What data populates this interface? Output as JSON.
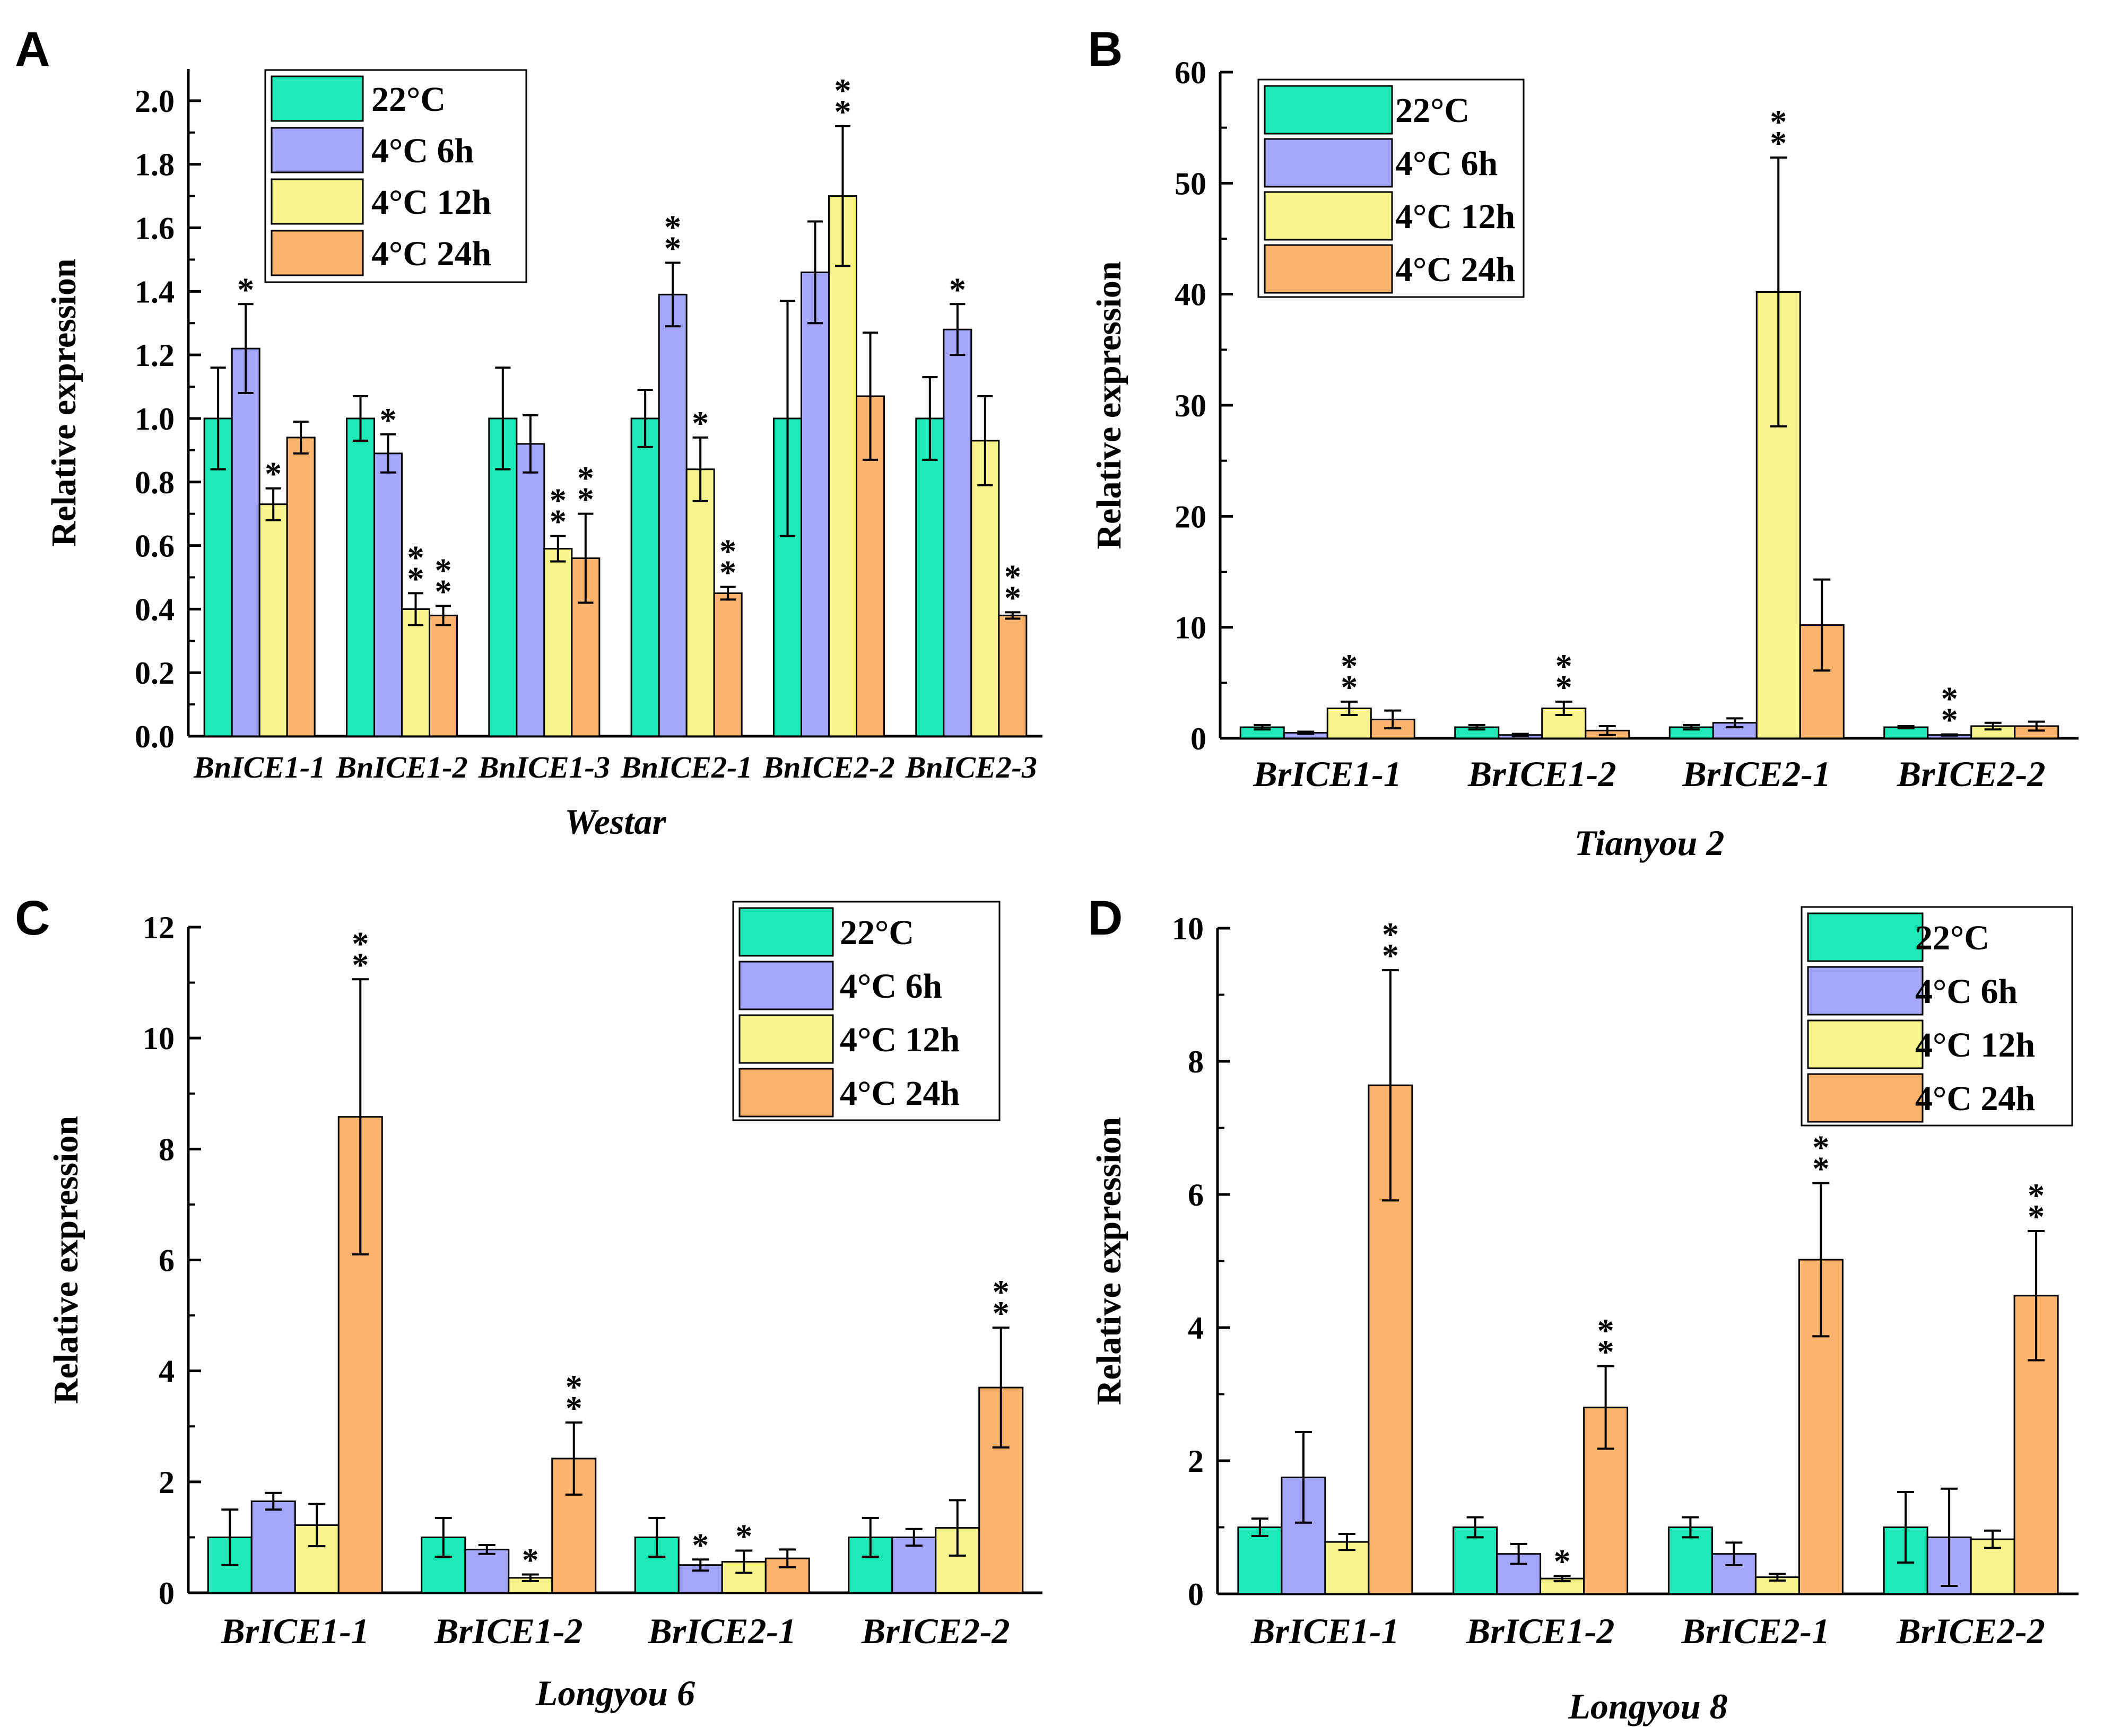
{
  "figure": {
    "colors": {
      "22C": "#1de9b6",
      "6h": "#a5a6fb",
      "12h": "#f7f48e",
      "24h": "#fbb36e",
      "axis": "#000000"
    },
    "series_names": [
      "22°C",
      "4°C 6h",
      "4°C 12h",
      "4°C 24h"
    ]
  },
  "chart_data": [
    {
      "panel": "A",
      "type": "bar",
      "title": "",
      "xlabel": "Westar",
      "ylabel": "Relative expression",
      "ylim": [
        0,
        2.1
      ],
      "yticks": [
        "0.0",
        "0.2",
        "0.4",
        "0.6",
        "0.8",
        "1.0",
        "1.2",
        "1.4",
        "1.6",
        "1.8",
        "2.0"
      ],
      "categories": [
        "BnICE1-1",
        "BnICE1-2",
        "BnICE1-3",
        "BnICE2-1",
        "BnICE2-2",
        "BnICE2-3"
      ],
      "legend": "top-center",
      "series": [
        {
          "name": "22°C",
          "values": [
            1.0,
            1.0,
            1.0,
            1.0,
            1.0,
            1.0
          ],
          "errors": [
            0.16,
            0.07,
            0.16,
            0.09,
            0.37,
            0.13
          ],
          "stars": [
            "",
            "",
            "",
            "",
            "",
            ""
          ]
        },
        {
          "name": "4°C 6h",
          "values": [
            1.22,
            0.89,
            0.92,
            1.39,
            1.46,
            1.28
          ],
          "errors": [
            0.14,
            0.06,
            0.09,
            0.1,
            0.16,
            0.08
          ],
          "stars": [
            "*",
            "*",
            "",
            "**",
            "",
            "*"
          ]
        },
        {
          "name": "4°C 12h",
          "values": [
            0.73,
            0.4,
            0.59,
            0.84,
            1.7,
            0.93
          ],
          "errors": [
            0.05,
            0.05,
            0.04,
            0.1,
            0.22,
            0.14
          ],
          "stars": [
            "*",
            "**",
            "**",
            "*",
            "**",
            ""
          ]
        },
        {
          "name": "4°C 24h",
          "values": [
            0.94,
            0.38,
            0.56,
            0.45,
            1.07,
            0.38
          ],
          "errors": [
            0.05,
            0.03,
            0.14,
            0.02,
            0.2,
            0.01
          ],
          "stars": [
            "",
            "**",
            "**",
            "**",
            "",
            "**"
          ]
        }
      ]
    },
    {
      "panel": "B",
      "type": "bar",
      "title": "",
      "xlabel": "Tianyou 2",
      "ylabel": "Relative expression",
      "ylim": [
        0,
        60
      ],
      "yticks": [
        "0",
        "10",
        "20",
        "30",
        "40",
        "50",
        "60"
      ],
      "categories": [
        "BrICE1-1",
        "BrICE1-2",
        "BrICE2-1",
        "BrICE2-2"
      ],
      "legend": "top-left",
      "series": [
        {
          "name": "22°C",
          "values": [
            1.0,
            1.0,
            1.0,
            1.0
          ],
          "errors": [
            0.2,
            0.2,
            0.2,
            0.1
          ],
          "stars": [
            "",
            "",
            "",
            ""
          ]
        },
        {
          "name": "4°C 6h",
          "values": [
            0.5,
            0.3,
            1.4,
            0.3
          ],
          "errors": [
            0.1,
            0.1,
            0.4,
            0.05
          ],
          "stars": [
            "",
            "",
            "",
            "**"
          ]
        },
        {
          "name": "4°C 12h",
          "values": [
            2.7,
            2.7,
            40.2,
            1.1
          ],
          "errors": [
            0.6,
            0.6,
            12.1,
            0.3
          ],
          "stars": [
            "**",
            "**",
            "**",
            ""
          ]
        },
        {
          "name": "4°C 24h",
          "values": [
            1.7,
            0.7,
            10.2,
            1.1
          ],
          "errors": [
            0.8,
            0.4,
            4.1,
            0.4
          ],
          "stars": [
            "",
            "",
            "",
            ""
          ]
        }
      ]
    },
    {
      "panel": "C",
      "type": "bar",
      "title": "",
      "xlabel": "Longyou 6",
      "ylabel": "Relative expression",
      "ylim": [
        0,
        12
      ],
      "yticks": [
        "0",
        "2",
        "4",
        "6",
        "8",
        "10",
        "12"
      ],
      "categories": [
        "BrICE1-1",
        "BrICE1-2",
        "BrICE2-1",
        "BrICE2-2"
      ],
      "legend": "top-right",
      "series": [
        {
          "name": "22°C",
          "values": [
            1.0,
            1.0,
            1.0,
            1.0
          ],
          "errors": [
            0.5,
            0.35,
            0.35,
            0.35
          ],
          "stars": [
            "",
            "",
            "",
            ""
          ]
        },
        {
          "name": "4°C 6h",
          "values": [
            1.65,
            0.78,
            0.5,
            1.0
          ],
          "errors": [
            0.15,
            0.08,
            0.1,
            0.15
          ],
          "stars": [
            "",
            "",
            "*",
            ""
          ]
        },
        {
          "name": "4°C 12h",
          "values": [
            1.22,
            0.27,
            0.56,
            1.17
          ],
          "errors": [
            0.38,
            0.06,
            0.2,
            0.5
          ],
          "stars": [
            "",
            "*",
            "*",
            ""
          ]
        },
        {
          "name": "4°C 24h",
          "values": [
            8.58,
            2.42,
            0.62,
            3.7
          ],
          "errors": [
            2.48,
            0.65,
            0.16,
            1.08
          ],
          "stars": [
            "**",
            "**",
            "",
            "**"
          ]
        }
      ]
    },
    {
      "panel": "D",
      "type": "bar",
      "title": "",
      "xlabel": "Longyou 8",
      "ylabel": "Relative expression",
      "ylim": [
        0,
        10
      ],
      "yticks": [
        "0",
        "2",
        "4",
        "6",
        "8",
        "10"
      ],
      "categories": [
        "BrICE1-1",
        "BrICE1-2",
        "BrICE2-1",
        "BrICE2-2"
      ],
      "legend": "top-right",
      "series": [
        {
          "name": "22°C",
          "values": [
            1.0,
            1.0,
            1.0,
            1.0
          ],
          "errors": [
            0.13,
            0.15,
            0.15,
            0.53
          ],
          "stars": [
            "",
            "",
            "",
            ""
          ]
        },
        {
          "name": "4°C 6h",
          "values": [
            1.75,
            0.6,
            0.6,
            0.85
          ],
          "errors": [
            0.68,
            0.15,
            0.17,
            0.73
          ],
          "stars": [
            "",
            "",
            "",
            ""
          ]
        },
        {
          "name": "4°C 12h",
          "values": [
            0.78,
            0.23,
            0.25,
            0.82
          ],
          "errors": [
            0.12,
            0.04,
            0.05,
            0.13
          ],
          "stars": [
            "",
            "*",
            "",
            ""
          ]
        },
        {
          "name": "4°C 24h",
          "values": [
            7.64,
            2.8,
            5.02,
            4.48
          ],
          "errors": [
            1.73,
            0.62,
            1.15,
            0.97
          ],
          "stars": [
            "**",
            "**",
            "**",
            "**"
          ]
        }
      ]
    }
  ]
}
